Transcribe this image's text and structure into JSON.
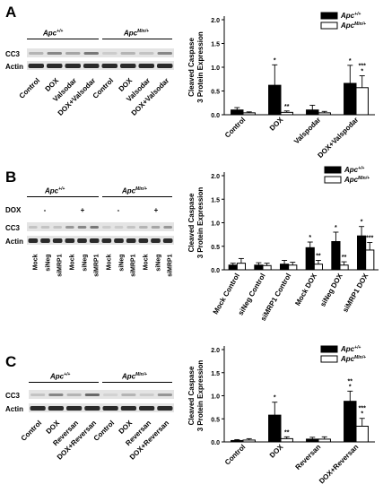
{
  "colors": {
    "apc_wt": "#000000",
    "apc_min": "#ffffff"
  },
  "panels": {
    "A": {
      "letter": "A",
      "blot": {
        "rows": [
          "CC3",
          "Actin"
        ],
        "genotypes": [
          {
            "base": "Apc",
            "sup": "+/+"
          },
          {
            "base": "Apc",
            "sup": "Min/+"
          }
        ],
        "lanes": [
          "Control",
          "DOX",
          "Valsodar",
          "DOX+Valsodar",
          "Control",
          "DOX",
          "Valsodar",
          "DOX+Valsodar"
        ],
        "cc3_intensity": [
          0.3,
          0.6,
          0.4,
          0.7,
          0.15,
          0.3,
          0.2,
          0.6
        ]
      }
    },
    "B": {
      "letter": "B",
      "blot": {
        "rows": [
          "DOX",
          "CC3",
          "Actin"
        ],
        "genotypes": [
          {
            "base": "Apc",
            "sup": "+/+"
          },
          {
            "base": "Apc",
            "sup": "Min/+"
          }
        ],
        "dox": [
          "-",
          "+",
          "-",
          "+"
        ],
        "lanes": [
          "Mock",
          "siNeg",
          "siMRP1",
          "Mock",
          "siNeg",
          "siMRP1",
          "Mock",
          "siNeg",
          "siMRP1",
          "Mock",
          "siNeg",
          "siMRP1"
        ],
        "cc3_intensity": [
          0.2,
          0.2,
          0.2,
          0.5,
          0.6,
          0.7,
          0.15,
          0.15,
          0.2,
          0.3,
          0.4,
          0.5
        ]
      }
    },
    "C": {
      "letter": "C",
      "blot": {
        "rows": [
          "CC3",
          "Actin"
        ],
        "genotypes": [
          {
            "base": "Apc",
            "sup": "+/+"
          },
          {
            "base": "Apc",
            "sup": "Min/+"
          }
        ],
        "lanes": [
          "Control",
          "DOX",
          "Reversan",
          "DOX+Reversan",
          "Control",
          "DOX",
          "Reversan",
          "DOX+Reversan"
        ],
        "cc3_intensity": [
          0.2,
          0.6,
          0.3,
          0.8,
          0.1,
          0.3,
          0.15,
          0.5
        ]
      }
    }
  },
  "chart_data": [
    {
      "type": "bar",
      "ylabel": "Cleaved Caspase 3 Protein Expression",
      "ylim": [
        0,
        2.0
      ],
      "yticks": [
        "0.0",
        "0.5",
        "1.0",
        "1.5",
        "2.0"
      ],
      "legend_position": "top-right",
      "categories": [
        "Control",
        "DOX",
        "Valspodar",
        "DOX+Valspodar"
      ],
      "series": [
        {
          "name_base": "Apc",
          "name_sup": "+/+",
          "values": [
            0.1,
            0.62,
            0.1,
            0.66
          ],
          "errors": [
            0.05,
            0.43,
            0.1,
            0.38
          ],
          "sig": [
            "",
            "*",
            "",
            "*"
          ]
        },
        {
          "name_base": "Apc",
          "name_sup": "Min/+",
          "values": [
            0.04,
            0.05,
            0.04,
            0.57
          ],
          "errors": [
            0.02,
            0.03,
            0.03,
            0.25
          ],
          "sig": [
            "",
            "**",
            "",
            "***\n*"
          ]
        }
      ]
    },
    {
      "type": "bar",
      "ylabel": "Cleaved Caspase 3 Protein Expression",
      "ylim": [
        0,
        2.0
      ],
      "yticks": [
        "0.0",
        "0.5",
        "1.0",
        "1.5",
        "2.0"
      ],
      "legend_position": "top-right",
      "categories": [
        "Mock Control",
        "siNeg Control",
        "siMRP1 Control",
        "Mock DOX",
        "siNeg DOX",
        "siMRP1 DOX"
      ],
      "series": [
        {
          "name_base": "Apc",
          "name_sup": "+/+",
          "values": [
            0.1,
            0.1,
            0.12,
            0.47,
            0.6,
            0.72
          ],
          "errors": [
            0.04,
            0.05,
            0.08,
            0.12,
            0.2,
            0.2
          ],
          "sig": [
            "",
            "",
            "",
            "*",
            "*",
            "*"
          ]
        },
        {
          "name_base": "Apc",
          "name_sup": "Min/+",
          "values": [
            0.14,
            0.09,
            0.1,
            0.12,
            0.1,
            0.42
          ],
          "errors": [
            0.1,
            0.05,
            0.06,
            0.08,
            0.07,
            0.16
          ],
          "sig": [
            "",
            "",
            "",
            "**",
            "**",
            "***"
          ]
        }
      ]
    },
    {
      "type": "bar",
      "ylabel": "Cleaved Caspase 3 Protein Expression",
      "ylim": [
        0,
        2.0
      ],
      "yticks": [
        "0.0",
        "0.5",
        "1.0",
        "1.5",
        "2.0"
      ],
      "legend_position": "top-right",
      "categories": [
        "Control",
        "DOX",
        "Reversan",
        "DOX+Reversan"
      ],
      "series": [
        {
          "name_base": "Apc",
          "name_sup": "+/+",
          "values": [
            0.03,
            0.58,
            0.06,
            0.88
          ],
          "errors": [
            0.02,
            0.28,
            0.04,
            0.22
          ],
          "sig": [
            "",
            "*",
            "",
            "**\n*"
          ]
        },
        {
          "name_base": "Apc",
          "name_sup": "Min/+",
          "values": [
            0.04,
            0.07,
            0.06,
            0.34
          ],
          "errors": [
            0.03,
            0.04,
            0.05,
            0.17
          ],
          "sig": [
            "",
            "**",
            "",
            "***\n*"
          ]
        }
      ]
    }
  ]
}
